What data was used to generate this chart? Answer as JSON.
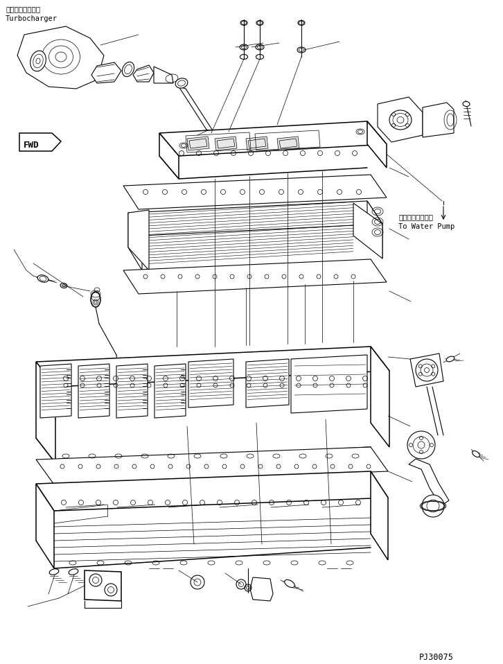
{
  "background_color": "#ffffff",
  "line_color": "#000000",
  "label_turbocharger_jp": "ターボチャージャ",
  "label_turbocharger_en": "Turbocharger",
  "label_fwd": "FWD",
  "label_water_pump_jp": "ウォータポンプへ",
  "label_water_pump_en": "To Water Pump",
  "label_id": "PJ30075",
  "fig_width": 7.26,
  "fig_height": 9.58,
  "dpi": 100
}
